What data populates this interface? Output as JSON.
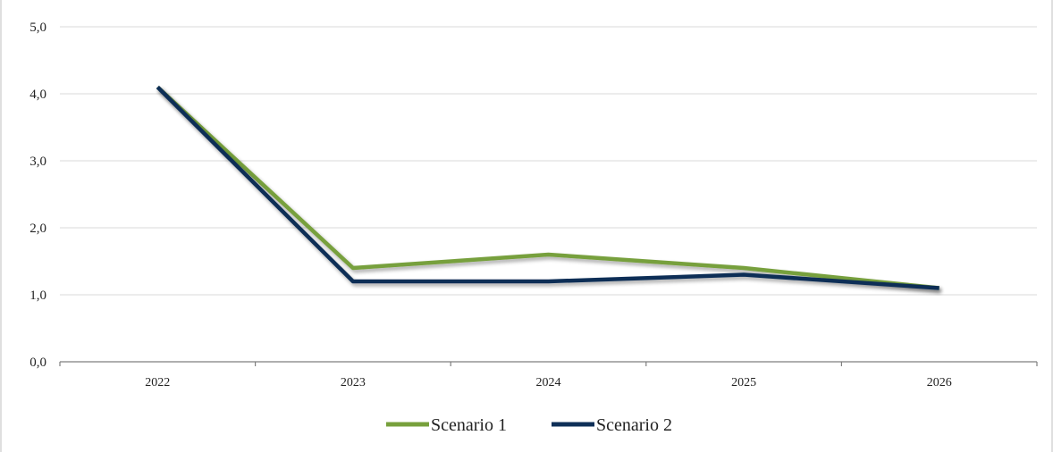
{
  "chart_data": {
    "type": "line",
    "title": "",
    "xlabel": "",
    "ylabel": "",
    "categories": [
      "2022",
      "2023",
      "2024",
      "2025",
      "2026"
    ],
    "y_ticks": [
      "0,0",
      "1,0",
      "2,0",
      "3,0",
      "4,0",
      "5,0"
    ],
    "ylim": [
      0,
      5
    ],
    "grid": true,
    "legend_position": "bottom-center",
    "series": [
      {
        "name": "Scenario 1",
        "color": "#77A03C",
        "values": [
          4.1,
          1.4,
          1.6,
          1.4,
          1.1
        ]
      },
      {
        "name": "Scenario 2",
        "color": "#0E2F57",
        "values": [
          4.1,
          1.2,
          1.2,
          1.3,
          1.1
        ]
      }
    ]
  }
}
